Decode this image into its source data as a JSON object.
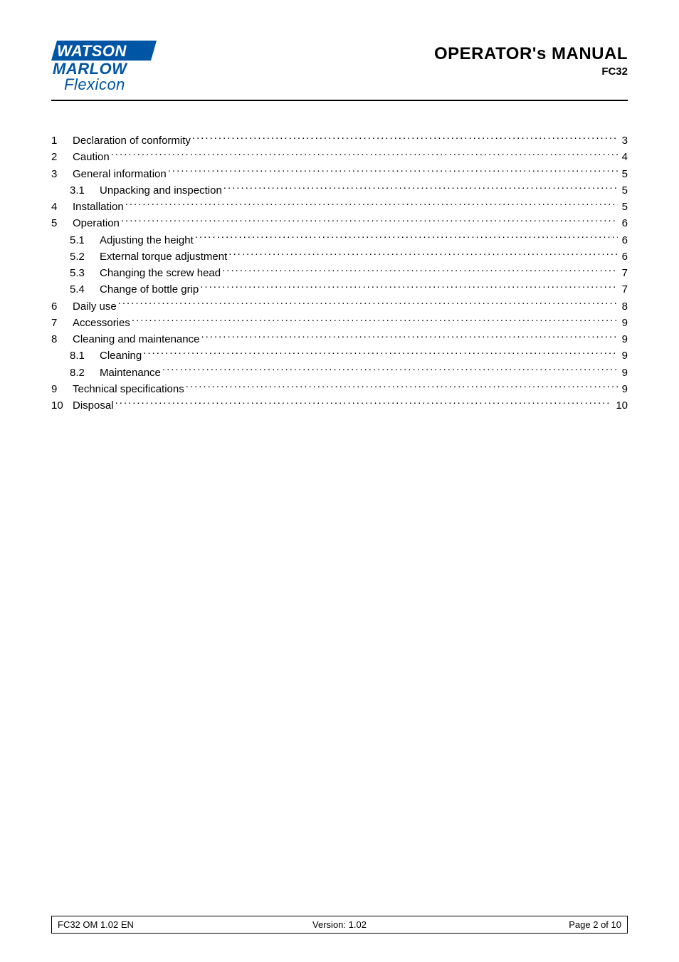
{
  "header": {
    "logo": {
      "watson": "WATSON",
      "marlow": "MARLOW",
      "flexicon": "Flexicon",
      "bg_color": "#0055a5"
    },
    "title": "OPERATOR's MANUAL",
    "subtitle": "FC32"
  },
  "toc": {
    "entries": [
      {
        "num": "1",
        "label": "Declaration of conformity",
        "page": "3",
        "level": 1
      },
      {
        "num": "2",
        "label": "Caution",
        "page": "4",
        "level": 1
      },
      {
        "num": "3",
        "label": "General information",
        "page": "5",
        "level": 1
      },
      {
        "num": "3.1",
        "label": "Unpacking and inspection",
        "page": "5",
        "level": 2
      },
      {
        "num": "4",
        "label": "Installation",
        "page": "5",
        "level": 1
      },
      {
        "num": "5",
        "label": "Operation",
        "page": "6",
        "level": 1
      },
      {
        "num": "5.1",
        "label": "Adjusting the height",
        "page": "6",
        "level": 2
      },
      {
        "num": "5.2",
        "label": "External torque adjustment",
        "page": "6",
        "level": 2
      },
      {
        "num": "5.3",
        "label": "Changing the screw head",
        "page": "7",
        "level": 2
      },
      {
        "num": "5.4",
        "label": "Change of bottle grip",
        "page": "7",
        "level": 2
      },
      {
        "num": "6",
        "label": "Daily use",
        "page": "8",
        "level": 1
      },
      {
        "num": "7",
        "label": "Accessories",
        "page": "9",
        "level": 1
      },
      {
        "num": "8",
        "label": "Cleaning and maintenance",
        "page": "9",
        "level": 1
      },
      {
        "num": "8.1",
        "label": "Cleaning",
        "page": "9",
        "level": 2
      },
      {
        "num": "8.2",
        "label": "Maintenance",
        "page": "9",
        "level": 2
      },
      {
        "num": "9",
        "label": "Technical specifications",
        "page": "9",
        "level": 1
      },
      {
        "num": "10",
        "label": "Disposal",
        "page": "10",
        "level": 1
      }
    ]
  },
  "footer": {
    "left": "FC32 OM 1.02 EN",
    "center": "Version: 1.02",
    "right": "Page 2 of 10"
  },
  "colors": {
    "brand_blue": "#0055a5",
    "text": "#000000",
    "bg": "#ffffff"
  }
}
